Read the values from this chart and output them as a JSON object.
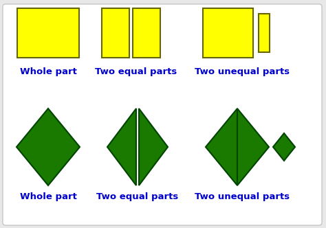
{
  "bg_color": "#e8e8e8",
  "inner_bg": "#ffffff",
  "yellow": "#ffff00",
  "yellow_edge": "#666600",
  "green": "#1a7a00",
  "green_edge": "#004400",
  "blue_text": "#0000cc",
  "labels_row1": [
    "Whole part",
    "Two equal parts",
    "Two unequal parts"
  ],
  "labels_row2": [
    "Whole part",
    "Two equal parts",
    "Two unequal parts"
  ],
  "label_fontsize": 9.5,
  "fig_w": 4.74,
  "fig_h": 3.32,
  "dpi": 100
}
